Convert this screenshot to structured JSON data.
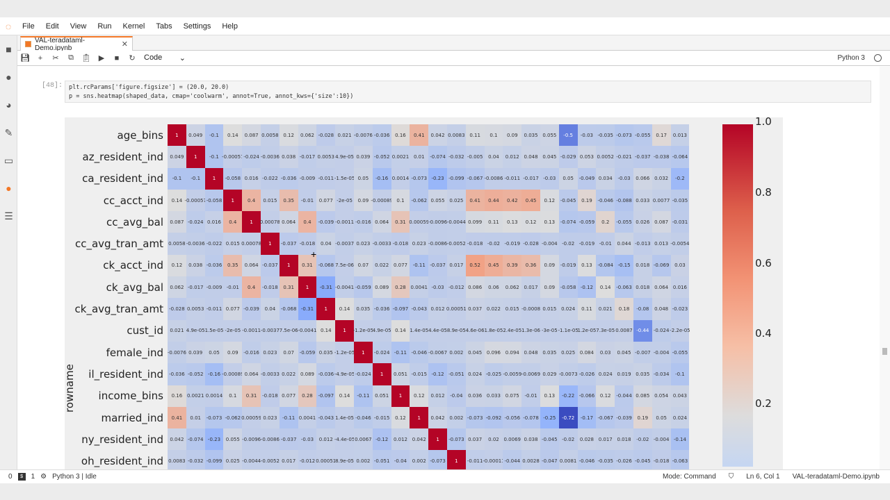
{
  "menubar": {
    "items": [
      "File",
      "Edit",
      "View",
      "Run",
      "Kernel",
      "Tabs",
      "Settings",
      "Help"
    ]
  },
  "tab": {
    "title": "VAL-teradataml-Demo.ipynb"
  },
  "toolbar": {
    "cell_type": "Code",
    "kernel": "Python 3"
  },
  "cell": {
    "prompt": "[48]:",
    "line1": "plt.rcParams['figure.figsize'] = (20.0, 20.0)",
    "line2": "p = sns.heatmap(shaped_data, cmap='coolwarm', annot=True, annot_kws={'size':10})"
  },
  "statusbar": {
    "count0": "0",
    "count1": "1",
    "kernel_status": "Python 3 | Idle",
    "mode": "Mode: Command",
    "position": "Ln 6, Col 1",
    "filename": "VAL-teradataml-Demo.ipynb"
  },
  "chart_data": {
    "type": "heatmap",
    "title": "",
    "ylabel": "rowname",
    "cmap": "coolwarm",
    "colorbar_ticks": [
      "1.0",
      "0.8",
      "0.6",
      "0.4",
      "0.2"
    ],
    "rows": [
      "age_bins",
      "az_resident_ind",
      "ca_resident_ind",
      "cc_acct_ind",
      "cc_avg_bal",
      "cc_avg_tran_amt",
      "ck_acct_ind",
      "ck_avg_bal",
      "ck_avg_tran_amt",
      "cust_id",
      "female_ind",
      "il_resident_ind",
      "income_bins",
      "married_ind",
      "ny_resident_ind",
      "oh_resident_ind"
    ],
    "values": [
      [
        "1",
        "0.049",
        "-0.1",
        "0.14",
        "0.087",
        "0.0058",
        "0.12",
        "0.062",
        "-0.028",
        "0.021",
        "-0.0076",
        "-0.036",
        "0.16",
        "0.41",
        "0.042",
        "0.0083",
        "0.11",
        "0.1",
        "0.09",
        "0.035",
        "0.055",
        "-0.5",
        "-0.03",
        "-0.035",
        "-0.073",
        "-0.055",
        "0.17",
        "0.013"
      ],
      [
        "0.049",
        "1",
        "-0.1",
        "-0.00057",
        "-0.024",
        "-0.0036",
        "0.038",
        "-0.017",
        "0.0053",
        "4.9e-05",
        "0.039",
        "-0.052",
        "0.0021",
        "0.01",
        "-0.074",
        "-0.032",
        "-0.005",
        "0.04",
        "0.012",
        "0.048",
        "0.045",
        "-0.029",
        "0.053",
        "0.0052",
        "-0.021",
        "-0.037",
        "-0.038",
        "-0.064"
      ],
      [
        "-0.1",
        "-0.1",
        "1",
        "-0.058",
        "0.016",
        "-0.022",
        "-0.036",
        "-0.009",
        "-0.011",
        "-1.5e-05",
        "0.05",
        "-0.16",
        "0.0014",
        "-0.073",
        "-0.23",
        "-0.099",
        "-0.067",
        "-0.0086",
        "-0.011",
        "-0.017",
        "-0.03",
        "0.05",
        "-0.049",
        "0.034",
        "-0.03",
        "0.066",
        "0.032",
        "-0.2"
      ],
      [
        "0.14",
        "-0.00057",
        "-0.058",
        "1",
        "0.4",
        "0.015",
        "0.35",
        "-0.01",
        "0.077",
        "-2e-05",
        "0.09",
        "-0.00089",
        "0.1",
        "-0.062",
        "0.055",
        "0.025",
        "0.41",
        "0.44",
        "0.42",
        "0.45",
        "0.12",
        "-0.045",
        "0.19",
        "-0.046",
        "-0.088",
        "0.033",
        "0.0077",
        "-0.035"
      ],
      [
        "0.087",
        "-0.024",
        "0.016",
        "0.4",
        "1",
        "0.00078",
        "0.064",
        "0.4",
        "-0.039",
        "-0.0011",
        "-0.016",
        "0.064",
        "0.31",
        "0.00059",
        "-0.0096",
        "-0.0044",
        "0.099",
        "0.11",
        "0.13",
        "0.12",
        "0.13",
        "-0.074",
        "-0.059",
        "0.2",
        "-0.055",
        "0.026",
        "0.087",
        "-0.031"
      ],
      [
        "0.0058",
        "-0.0036",
        "-0.022",
        "0.015",
        "0.00078",
        "1",
        "-0.037",
        "-0.018",
        "0.04",
        "-0.0037",
        "0.023",
        "-0.0033",
        "-0.018",
        "0.023",
        "-0.0086",
        "-0.0052",
        "-0.018",
        "-0.02",
        "-0.019",
        "-0.028",
        "-0.004",
        "-0.02",
        "-0.019",
        "-0.01",
        "0.044",
        "-0.013",
        "0.013",
        "-0.0054"
      ],
      [
        "0.12",
        "0.038",
        "-0.036",
        "0.35",
        "0.064",
        "-0.037",
        "1",
        "0.31",
        "-0.068",
        "7.5e-06",
        "0.07",
        "0.022",
        "0.077",
        "-0.11",
        "-0.037",
        "0.017",
        "0.52",
        "0.45",
        "0.39",
        "0.36",
        "0.09",
        "-0.019",
        "0.13",
        "-0.084",
        "-0.15",
        "0.018",
        "-0.069",
        "0.03"
      ],
      [
        "0.062",
        "-0.017",
        "-0.009",
        "-0.01",
        "0.4",
        "-0.018",
        "0.31",
        "1",
        "-0.31",
        "-0.0041",
        "-0.059",
        "0.089",
        "0.28",
        "0.0041",
        "-0.03",
        "-0.012",
        "0.086",
        "0.06",
        "0.062",
        "0.017",
        "0.09",
        "-0.058",
        "-0.12",
        "0.14",
        "-0.063",
        "0.018",
        "0.064",
        "0.016"
      ],
      [
        "-0.028",
        "0.0053",
        "-0.011",
        "0.077",
        "-0.039",
        "0.04",
        "-0.068",
        "-0.31",
        "1",
        "0.14",
        "0.035",
        "-0.036",
        "-0.097",
        "-0.043",
        "0.012",
        "0.00051",
        "0.037",
        "0.022",
        "0.015",
        "-0.0008",
        "0.015",
        "0.024",
        "0.11",
        "0.021",
        "0.18",
        "-0.08",
        "0.048",
        "-0.023"
      ],
      [
        "0.021",
        "4.9e-05",
        "1.5e-05",
        "-2e-05",
        "-0.0011",
        "-0.0037",
        "7.5e-06",
        "-0.0041",
        "0.14",
        "1",
        "-1.2e-05",
        "4.9e-05",
        "0.14",
        "1.4e-05",
        "4.4e-05",
        "8.9e-05",
        "4.6e-06",
        "1.8e-05",
        "2.4e-05",
        "1.3e-06",
        "-3e-05",
        "-1.1e-05",
        "1.2e-05",
        "7.3e-05",
        "0.0087",
        "-0.44",
        "-0.024",
        "-2.2e-05"
      ],
      [
        "-0.0076",
        "0.039",
        "0.05",
        "0.09",
        "-0.016",
        "0.023",
        "0.07",
        "-0.059",
        "0.035",
        "-1.2e-05",
        "1",
        "-0.024",
        "-0.11",
        "-0.046",
        "-0.0067",
        "0.002",
        "0.045",
        "0.096",
        "0.094",
        "0.048",
        "0.035",
        "0.025",
        "0.084",
        "0.03",
        "0.045",
        "-0.007",
        "-0.004",
        "-0.055"
      ],
      [
        "-0.036",
        "-0.052",
        "-0.16",
        "-0.00089",
        "0.064",
        "-0.0033",
        "0.022",
        "0.089",
        "-0.036",
        "-4.9e-05",
        "-0.024",
        "1",
        "0.051",
        "-0.015",
        "-0.12",
        "-0.051",
        "0.024",
        "-0.025",
        "-0.0059",
        "-0.0069",
        "0.029",
        "-0.0073",
        "-0.026",
        "0.024",
        "0.019",
        "0.035",
        "-0.034",
        "-0.1"
      ],
      [
        "0.16",
        "0.0021",
        "0.0014",
        "0.1",
        "0.31",
        "-0.018",
        "0.077",
        "0.28",
        "-0.097",
        "0.14",
        "-0.11",
        "0.051",
        "1",
        "0.12",
        "0.012",
        "-0.04",
        "0.036",
        "0.033",
        "0.075",
        "-0.01",
        "0.13",
        "-0.22",
        "-0.066",
        "0.12",
        "-0.044",
        "0.085",
        "0.054",
        "0.043"
      ],
      [
        "0.41",
        "0.01",
        "-0.073",
        "-0.062",
        "0.00059",
        "0.023",
        "-0.11",
        "0.0041",
        "-0.043",
        "1.4e-05",
        "-0.046",
        "-0.015",
        "0.12",
        "1",
        "0.042",
        "0.002",
        "-0.073",
        "-0.092",
        "-0.056",
        "-0.078",
        "-0.25",
        "-0.72",
        "-0.17",
        "-0.067",
        "-0.039",
        "0.19",
        "0.05",
        "0.024"
      ],
      [
        "0.042",
        "-0.074",
        "-0.23",
        "0.055",
        "-0.0096",
        "-0.0086",
        "-0.037",
        "-0.03",
        "0.012",
        "-4.4e-05",
        "0.0067",
        "-0.12",
        "0.012",
        "0.042",
        "1",
        "-0.073",
        "0.037",
        "0.02",
        "0.0069",
        "0.038",
        "-0.045",
        "-0.02",
        "0.028",
        "0.017",
        "0.018",
        "-0.02",
        "-0.004",
        "-0.14"
      ],
      [
        "0.0083",
        "-0.032",
        "-0.099",
        "0.025",
        "-0.0044",
        "-0.0052",
        "0.017",
        "-0.012",
        "0.00051",
        "8.9e-05",
        "0.002",
        "-0.051",
        "-0.04",
        "0.002",
        "-0.073",
        "1",
        "-0.011",
        "-0.00011",
        "-0.044",
        "0.0028",
        "-0.047",
        "0.0081",
        "-0.046",
        "-0.035",
        "-0.026",
        "-0.045",
        "-0.018",
        "-0.063"
      ]
    ]
  }
}
